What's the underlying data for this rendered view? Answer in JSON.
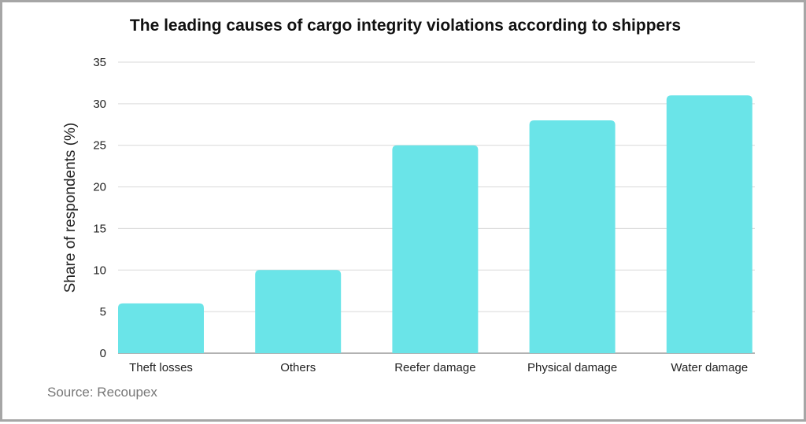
{
  "chart_data": {
    "type": "bar",
    "title": "The leading causes of cargo integrity violations according to shippers",
    "categories": [
      "Theft losses",
      "Others",
      "Reefer damage",
      "Physical damage",
      "Water damage"
    ],
    "values": [
      6,
      10,
      25,
      28,
      31
    ],
    "xlabel": "",
    "ylabel": "Share of respondents (%)",
    "ylim": [
      0,
      35
    ],
    "yticks": [
      0,
      5,
      10,
      15,
      20,
      25,
      30,
      35
    ],
    "grid": true,
    "bar_color": "#6ae4e8",
    "grid_color": "#d9d9d9",
    "axis_color": "#999999"
  },
  "footer": {
    "source": "Source: Recoupex"
  }
}
